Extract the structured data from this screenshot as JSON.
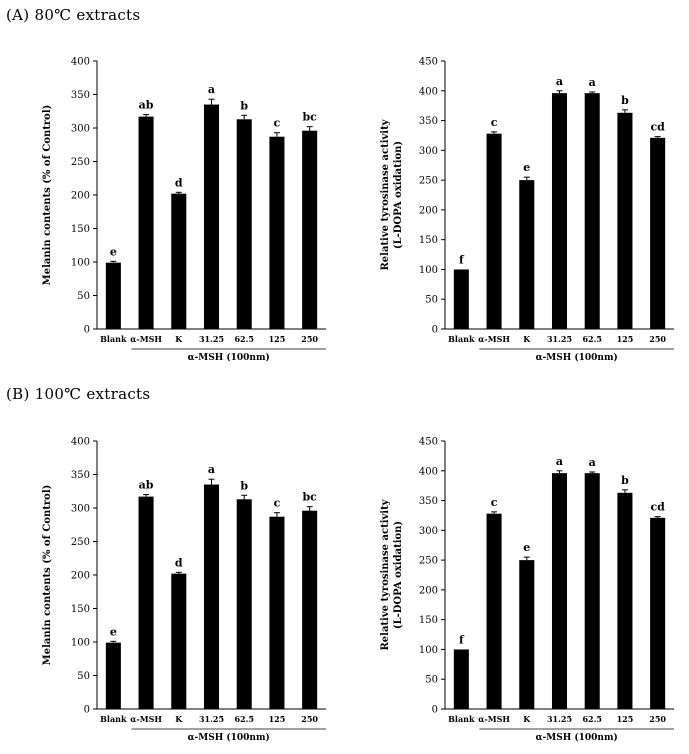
{
  "section_titles": [
    "(A) 80℃ extracts",
    "(B) 100℃ extracts"
  ],
  "chart_data": [
    {
      "type": "bar",
      "panel": "A",
      "ylabel": "Melanin contents (% of Control)",
      "xlabel": "α-MSH (100nm)",
      "categories": [
        "Blank",
        "α-MSH",
        "K",
        "31.25",
        "62.5",
        "125",
        "250"
      ],
      "values": [
        99,
        317,
        202,
        335,
        313,
        287,
        296
      ],
      "errors": [
        2,
        3,
        2,
        8,
        6,
        6,
        6
      ],
      "labels": [
        "e",
        "ab",
        "d",
        "a",
        "b",
        "c",
        "bc"
      ],
      "ylim": [
        0,
        400
      ],
      "yticks": [
        0,
        50,
        100,
        150,
        200,
        250,
        300,
        350,
        400
      ],
      "grid": false,
      "color": "#000000"
    },
    {
      "type": "bar",
      "panel": "A",
      "ylabel": "Relative tyrosinase activity (L-DOPA oxidation)",
      "xlabel": "α-MSH (100nm)",
      "categories": [
        "Blank",
        "α-MSH",
        "K",
        "31.25",
        "62.5",
        "125",
        "250"
      ],
      "values": [
        100,
        328,
        250,
        396,
        396,
        363,
        321
      ],
      "errors": [
        0,
        3,
        5,
        4,
        2,
        5,
        2
      ],
      "labels": [
        "f",
        "c",
        "e",
        "a",
        "a",
        "b",
        "cd"
      ],
      "ylim": [
        0,
        450
      ],
      "yticks": [
        0,
        50,
        100,
        150,
        200,
        250,
        300,
        350,
        400,
        450
      ],
      "grid": false,
      "color": "#000000"
    },
    {
      "type": "bar",
      "panel": "B",
      "ylabel": "Melanin contents (% of Control)",
      "xlabel": "α-MSH (100nm)",
      "categories": [
        "Blank",
        "α-MSH",
        "K",
        "31.25",
        "62.5",
        "125",
        "250"
      ],
      "values": [
        99,
        317,
        202,
        335,
        313,
        287,
        296
      ],
      "errors": [
        2,
        3,
        2,
        8,
        6,
        6,
        6
      ],
      "labels": [
        "e",
        "ab",
        "d",
        "a",
        "b",
        "c",
        "bc"
      ],
      "ylim": [
        0,
        400
      ],
      "yticks": [
        0,
        50,
        100,
        150,
        200,
        250,
        300,
        350,
        400
      ],
      "grid": false,
      "color": "#000000"
    },
    {
      "type": "bar",
      "panel": "B",
      "ylabel": "Relative tyrosinase activity (L-DOPA oxidation)",
      "xlabel": "α-MSH (100nm)",
      "categories": [
        "Blank",
        "α-MSH",
        "K",
        "31.25",
        "62.5",
        "125",
        "250"
      ],
      "values": [
        100,
        328,
        250,
        396,
        396,
        363,
        321
      ],
      "errors": [
        0,
        3,
        5,
        4,
        2,
        5,
        2
      ],
      "labels": [
        "f",
        "c",
        "e",
        "a",
        "a",
        "b",
        "cd"
      ],
      "ylim": [
        0,
        450
      ],
      "yticks": [
        0,
        50,
        100,
        150,
        200,
        250,
        300,
        350,
        400,
        450
      ],
      "grid": false,
      "color": "#000000"
    }
  ]
}
